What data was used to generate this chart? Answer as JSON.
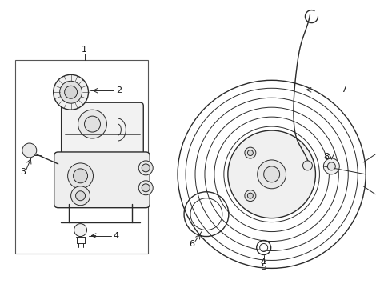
{
  "background_color": "#ffffff",
  "fig_width": 4.9,
  "fig_height": 3.6,
  "dpi": 100,
  "line_color": "#2a2a2a",
  "text_color": "#111111",
  "lw_thin": 0.7,
  "lw_med": 1.0,
  "lw_thick": 1.5
}
